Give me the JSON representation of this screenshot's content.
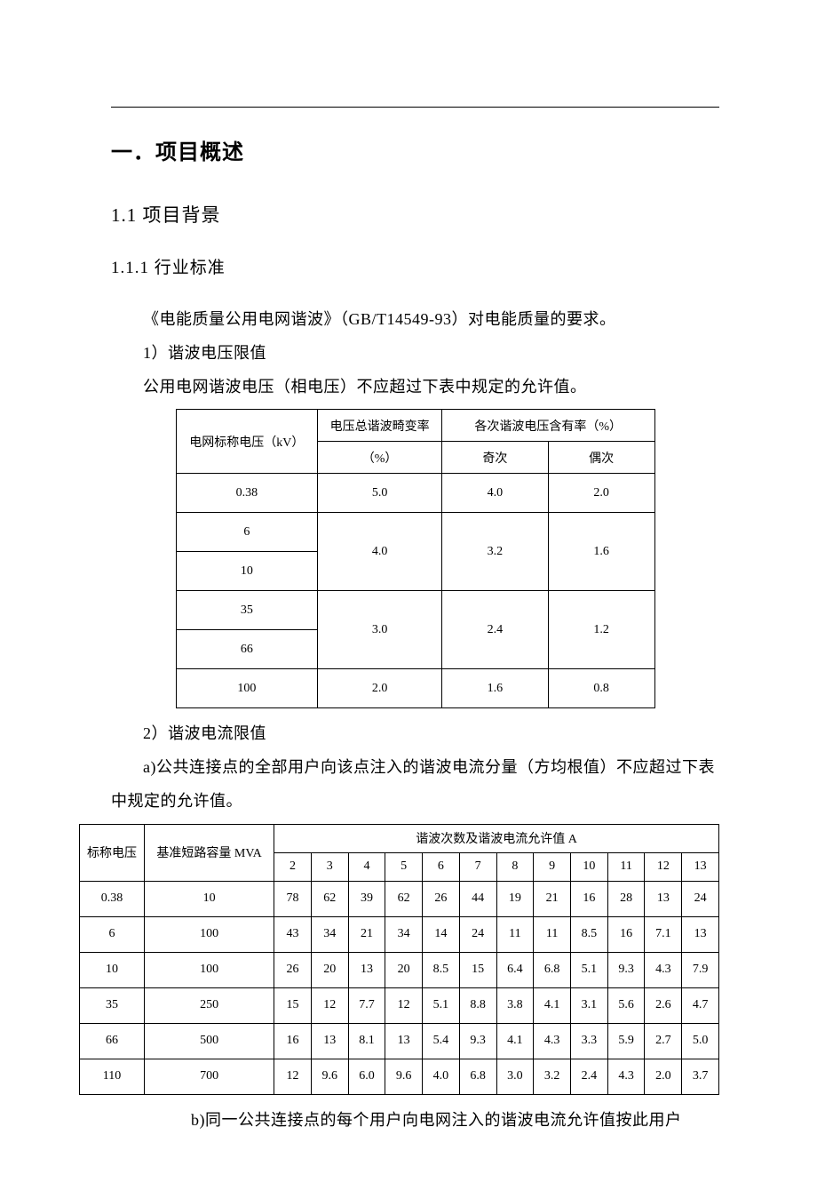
{
  "headings": {
    "h1": "一．项目概述",
    "h2": "1.1 项目背景",
    "h3": "1.1.1 行业标准"
  },
  "paras": {
    "p1": "《电能质量公用电网谐波》（GB/T14549-93）对电能质量的要求。",
    "p2": "1）谐波电压限值",
    "p3": "公用电网谐波电压（相电压）不应超过下表中规定的允许值。",
    "p4": "2）谐波电流限值",
    "p5": "a)公共连接点的全部用户向该点注入的谐波电流分量（方均根值）不应超过下表中规定的允许值。",
    "p6": "b)同一公共连接点的每个用户向电网注入的谐波电流允许值按此用户"
  },
  "table1": {
    "headers": {
      "col1": "电网标称电压（kV）",
      "col2_top": "电压总谐波畸变率",
      "col2_bot": "（%）",
      "col3_top": "各次谐波电压含有率（%）",
      "col3_odd": "奇次",
      "col3_even": "偶次"
    },
    "rows": [
      {
        "v": "0.38",
        "thd": "5.0",
        "odd": "4.0",
        "even": "2.0"
      },
      {
        "v": "6",
        "thd": "4.0",
        "odd": "3.2",
        "even": "1.6",
        "merge_start": true
      },
      {
        "v": "10"
      },
      {
        "v": "35",
        "thd": "3.0",
        "odd": "2.4",
        "even": "1.2",
        "merge_start": true
      },
      {
        "v": "66"
      },
      {
        "v": "100",
        "thd": "2.0",
        "odd": "1.6",
        "even": "0.8"
      }
    ]
  },
  "table2": {
    "headers": {
      "col1": "标称电压",
      "col2": "基准短路容量 MVA",
      "col_group": "谐波次数及谐波电流允许值 A",
      "nums": [
        "2",
        "3",
        "4",
        "5",
        "6",
        "7",
        "8",
        "9",
        "10",
        "11",
        "12",
        "13"
      ]
    },
    "rows": [
      {
        "v": "0.38",
        "c": "10",
        "d": [
          "78",
          "62",
          "39",
          "62",
          "26",
          "44",
          "19",
          "21",
          "16",
          "28",
          "13",
          "24"
        ]
      },
      {
        "v": "6",
        "c": "100",
        "d": [
          "43",
          "34",
          "21",
          "34",
          "14",
          "24",
          "11",
          "11",
          "8.5",
          "16",
          "7.1",
          "13"
        ]
      },
      {
        "v": "10",
        "c": "100",
        "d": [
          "26",
          "20",
          "13",
          "20",
          "8.5",
          "15",
          "6.4",
          "6.8",
          "5.1",
          "9.3",
          "4.3",
          "7.9"
        ]
      },
      {
        "v": "35",
        "c": "250",
        "d": [
          "15",
          "12",
          "7.7",
          "12",
          "5.1",
          "8.8",
          "3.8",
          "4.1",
          "3.1",
          "5.6",
          "2.6",
          "4.7"
        ]
      },
      {
        "v": "66",
        "c": "500",
        "d": [
          "16",
          "13",
          "8.1",
          "13",
          "5.4",
          "9.3",
          "4.1",
          "4.3",
          "3.3",
          "5.9",
          "2.7",
          "5.0"
        ]
      },
      {
        "v": "110",
        "c": "700",
        "d": [
          "12",
          "9.6",
          "6.0",
          "9.6",
          "4.0",
          "6.8",
          "3.0",
          "3.2",
          "2.4",
          "4.3",
          "2.0",
          "3.7"
        ]
      }
    ]
  },
  "style": {
    "page_bg": "#ffffff",
    "text_color": "#000000",
    "border_color": "#000000",
    "body_fontsize": 18,
    "table_fontsize": 14,
    "h1_fontsize": 24,
    "h2_fontsize": 21,
    "h3_fontsize": 19
  }
}
